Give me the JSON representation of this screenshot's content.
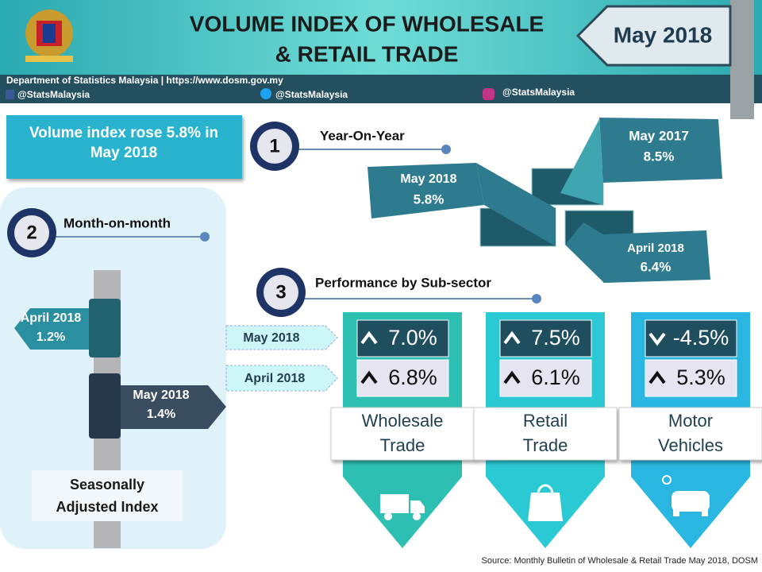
{
  "header": {
    "title_lines": [
      "VOLUME INDEX OF WHOLESALE",
      "& RETAIL TRADE"
    ],
    "period": "May 2018",
    "source_line": "Department of Statistics Malaysia | https://www.dosm.gov.my",
    "facebook": "@StatsMalaysia",
    "twitter": "@StatsMalaysia",
    "instagram": "@StatsMalaysia"
  },
  "headline": [
    "Volume index rose 5.8% in",
    "May 2018"
  ],
  "year_on_year": {
    "number": "1",
    "title": "Year-On-Year",
    "items": [
      {
        "label": "May 2018",
        "value": "5.8%"
      },
      {
        "label": "May 2017",
        "value": "8.5%"
      },
      {
        "label": "April 2018",
        "value": "6.4%"
      }
    ]
  },
  "month_on_month": {
    "number": "2",
    "title": "Month-on-month",
    "items": [
      {
        "label": "April 2018",
        "value": "1.2%"
      },
      {
        "label": "May 2018",
        "value": "1.4%"
      }
    ],
    "caption": [
      "Seasonally",
      "Adjusted Index"
    ]
  },
  "sub_sector": {
    "number": "3",
    "title": "Performance by Sub-sector",
    "periods": [
      "May 2018",
      "April 2018"
    ],
    "sectors": [
      {
        "name": [
          "Wholesale",
          "Trade"
        ],
        "values": [
          "7.0%",
          "6.8%"
        ],
        "directions": [
          "up",
          "up"
        ],
        "color": "#2cbfb2"
      },
      {
        "name": [
          "Retail",
          "Trade"
        ],
        "values": [
          "7.5%",
          "6.1%"
        ],
        "directions": [
          "up",
          "up"
        ],
        "color": "#2bc9d3"
      },
      {
        "name": [
          "Motor",
          "Vehicles"
        ],
        "values": [
          "-4.5%",
          "5.3%"
        ],
        "directions": [
          "down",
          "up"
        ],
        "color": "#29b6e0"
      }
    ]
  },
  "source": "Source: Monthly Bulletin of Wholesale & Retail Trade May 2018, DOSM"
}
